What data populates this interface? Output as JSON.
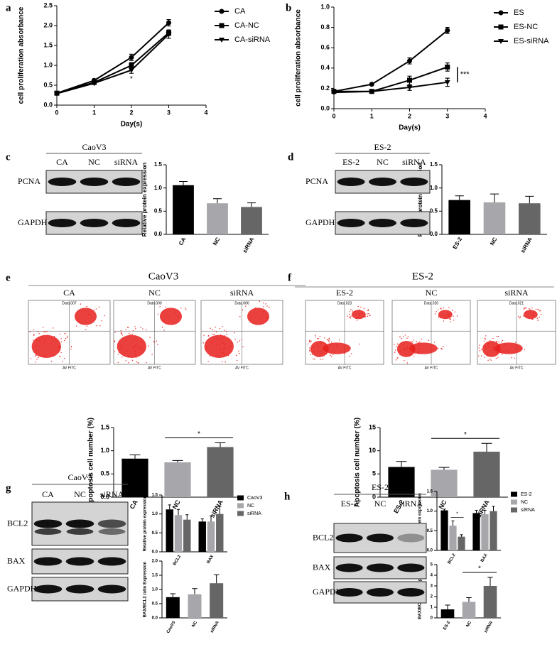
{
  "chart_data": [
    {
      "type": "line",
      "panel": "a",
      "y_label": "cell proliferation absorbance",
      "x_label": "Day(s)",
      "x": [
        0,
        1,
        2,
        3
      ],
      "xlim": [
        0,
        4
      ],
      "xticks": [
        0,
        1,
        2,
        3,
        4
      ],
      "ylim": [
        0,
        2.5
      ],
      "yticks": [
        {
          "value": 0,
          "label": "0.0"
        },
        0.5,
        {
          "value": 1,
          "label": "1.0"
        },
        1.5,
        {
          "value": 2,
          "label": "2.0"
        },
        2.5
      ],
      "legend": "upper right",
      "annotation": "*",
      "series": [
        {
          "name": "CA",
          "color": "#000000",
          "marker": "circle",
          "values": [
            0.3,
            0.62,
            1.2,
            2.07
          ],
          "errors": [
            0.03,
            0.04,
            0.08,
            0.08
          ]
        },
        {
          "name": "CA-NC",
          "color": "#000000",
          "marker": "square",
          "values": [
            0.3,
            0.57,
            1.0,
            1.82
          ],
          "errors": [
            0.03,
            0.03,
            0.07,
            0.07
          ]
        },
        {
          "name": "CA-siRNA",
          "color": "#000000",
          "marker": "triangle",
          "values": [
            0.29,
            0.55,
            0.88,
            1.78
          ],
          "errors": [
            0.03,
            0.03,
            0.08,
            0.1
          ]
        }
      ]
    },
    {
      "type": "line",
      "panel": "b",
      "y_label": "cell proliferation absorbance",
      "x_label": "Day(s)",
      "x": [
        0,
        1,
        2,
        3
      ],
      "xlim": [
        0,
        4
      ],
      "xticks": [
        0,
        1,
        2,
        3,
        4
      ],
      "ylim": [
        0,
        1
      ],
      "yticks": [
        {
          "value": 0,
          "label": "0.0"
        },
        0.2,
        0.4,
        0.6,
        0.8,
        {
          "value": 1,
          "label": "1.0"
        }
      ],
      "legend": "upper right",
      "annotation": "***",
      "series": [
        {
          "name": "ES",
          "color": "#000000",
          "marker": "circle",
          "values": [
            0.17,
            0.24,
            0.47,
            0.77
          ],
          "errors": [
            0.01,
            0.01,
            0.03,
            0.03
          ]
        },
        {
          "name": "ES-NC",
          "color": "#000000",
          "marker": "square",
          "values": [
            0.17,
            0.17,
            0.28,
            0.41
          ],
          "errors": [
            0.01,
            0.01,
            0.04,
            0.04
          ]
        },
        {
          "name": "ES-siRNA",
          "color": "#000000",
          "marker": "triangle",
          "values": [
            0.16,
            0.17,
            0.21,
            0.26
          ],
          "errors": [
            0.01,
            0.01,
            0.03,
            0.04
          ]
        }
      ]
    },
    {
      "type": "bar",
      "y_label": "Relative protein expression",
      "categories": [
        "CA",
        "NC",
        "siRNA"
      ],
      "values": [
        1.06,
        0.67,
        0.59
      ],
      "errors": [
        0.08,
        0.1,
        0.09
      ],
      "colors": [
        "#000000",
        "#a6a6ab",
        "#666666"
      ],
      "ylim": [
        0,
        1.5
      ],
      "yticks": [
        {
          "value": 0,
          "label": "0.0"
        },
        0.5,
        {
          "value": 1,
          "label": "1.0"
        },
        1.5
      ]
    },
    {
      "type": "bar",
      "y_label": "Relative protein expression",
      "categories": [
        "ES-2",
        "NC",
        "siRNA"
      ],
      "values": [
        0.74,
        0.69,
        0.67
      ],
      "errors": [
        0.09,
        0.18,
        0.15
      ],
      "colors": [
        "#000000",
        "#a6a6ab",
        "#666666"
      ],
      "ylim": [
        0,
        1.5
      ],
      "yticks": [
        {
          "value": 0,
          "label": "0.0"
        },
        0.5,
        {
          "value": 1,
          "label": "1.0"
        },
        1.5
      ]
    },
    {
      "type": "bar",
      "y_label": "Apoptosis cell number (%)",
      "categories": [
        "CA",
        "NC",
        "siRNA"
      ],
      "values": [
        0.83,
        0.75,
        1.08
      ],
      "errors": [
        0.08,
        0.04,
        0.09
      ],
      "colors": [
        "#000000",
        "#a6a6ab",
        "#666666"
      ],
      "ylim": [
        0,
        1.5
      ],
      "yticks": [
        {
          "value": 0,
          "label": "0.0"
        },
        0.5,
        {
          "value": 1,
          "label": "1.0"
        },
        1.5
      ],
      "annotation": "*"
    },
    {
      "type": "bar",
      "y_label": "Apoptosis cell number (%)",
      "categories": [
        "ES-2",
        "NC",
        "siRNA"
      ],
      "values": [
        6.5,
        5.9,
        9.8
      ],
      "errors": [
        1.2,
        0.5,
        1.8
      ],
      "colors": [
        "#000000",
        "#a6a6ab",
        "#666666"
      ],
      "ylim": [
        0,
        15
      ],
      "yticks": [
        0,
        5,
        10,
        15
      ],
      "annotation": "*"
    },
    {
      "type": "grouped_bar",
      "y_label": "Relative protein expression",
      "categories": [
        "BCL2",
        "BAX"
      ],
      "legend": "right",
      "ylim": [
        0,
        1.5
      ],
      "yticks": [
        {
          "value": 0,
          "label": "0.0"
        },
        0.5,
        {
          "value": 1,
          "label": "1.0"
        },
        1.5
      ],
      "series": [
        {
          "name": "CaoV3",
          "color": "#000000",
          "values": [
            1.12,
            0.8
          ],
          "errors": [
            0.12,
            0.07
          ]
        },
        {
          "name": "NC",
          "color": "#a6a6ab",
          "values": [
            0.97,
            0.8
          ],
          "errors": [
            0.15,
            0.15
          ]
        },
        {
          "name": "siRNA",
          "color": "#666666",
          "values": [
            0.85,
            1.0
          ],
          "errors": [
            0.13,
            0.2
          ]
        }
      ]
    },
    {
      "type": "bar",
      "y_label": "BAX/BCL2 ratio Expression",
      "categories": [
        "CaoV3",
        "NC",
        "siRNA"
      ],
      "values": [
        0.73,
        0.83,
        1.22
      ],
      "errors": [
        0.12,
        0.2,
        0.3
      ],
      "colors": [
        "#000000",
        "#a6a6ab",
        "#666666"
      ],
      "ylim": [
        0,
        2
      ],
      "yticks": [
        {
          "value": 0,
          "label": "0.0"
        },
        0.5,
        {
          "value": 1,
          "label": "1.0"
        },
        1.5,
        {
          "value": 2,
          "label": "2.0"
        }
      ]
    },
    {
      "type": "grouped_bar",
      "y_label": "Relative protein expression",
      "categories": [
        "BCL2",
        "BAX"
      ],
      "legend": "right",
      "annotation": "*",
      "ylim": [
        0,
        1.5
      ],
      "yticks": [
        {
          "value": 0,
          "label": "0.0"
        },
        0.5,
        {
          "value": 1,
          "label": "1.0"
        },
        1.5
      ],
      "series": [
        {
          "name": "ES-2",
          "color": "#000000",
          "values": [
            1.02,
            0.95
          ],
          "errors": [
            0.03,
            0.07
          ]
        },
        {
          "name": "NC",
          "color": "#a6a6ab",
          "values": [
            0.63,
            0.92
          ],
          "errors": [
            0.12,
            0.1
          ]
        },
        {
          "name": "siRNA",
          "color": "#666666",
          "values": [
            0.35,
            1.0
          ],
          "errors": [
            0.05,
            0.12
          ]
        }
      ]
    },
    {
      "type": "bar",
      "y_label": "BAX/BCL2 ratio Expression",
      "categories": [
        "ES-2",
        "NC",
        "siRNA"
      ],
      "values": [
        0.8,
        1.5,
        3.0
      ],
      "errors": [
        0.4,
        0.4,
        0.8
      ],
      "colors": [
        "#000000",
        "#a6a6ab",
        "#666666"
      ],
      "ylim": [
        0,
        5
      ],
      "yticks": [
        0,
        1,
        2,
        3,
        4,
        5
      ],
      "annotation": "*"
    }
  ],
  "blots": [
    {
      "panel": "c",
      "title": "CaoV3",
      "lanes": [
        "CA",
        "NC",
        "siRNA"
      ],
      "rows": [
        "PCNA",
        "GAPDH"
      ]
    },
    {
      "panel": "d",
      "title": "ES-2",
      "lanes": [
        "ES-2",
        "NC",
        "siRNA"
      ],
      "rows": [
        "PCNA",
        "GAPDH"
      ]
    },
    {
      "panel": "g",
      "title": "CaoV3",
      "lanes": [
        "CA",
        "NC",
        "siRNA"
      ],
      "rows": [
        "BCL2",
        "BAX",
        "GAPDH"
      ]
    },
    {
      "panel": "h",
      "title": "ES-2",
      "lanes": [
        "ES-2",
        "NC",
        "siRNA"
      ],
      "rows": [
        "BCL2",
        "BAX",
        "GAPDH"
      ]
    }
  ],
  "flow_panels": [
    {
      "panel": "e",
      "title": "CaoV3",
      "plots": [
        {
          "label": "CA",
          "file": "Data.007",
          "x_label": "AV FITC"
        },
        {
          "label": "NC",
          "file": "Data.000",
          "x_label": "AV FITC"
        },
        {
          "label": "siRNA",
          "file": "Data.006",
          "x_label": "AV FITC"
        }
      ]
    },
    {
      "panel": "f",
      "title": "ES-2",
      "plots": [
        {
          "label": "ES-2",
          "file": "Data.023",
          "x_label": "AV FITC"
        },
        {
          "label": "NC",
          "file": "Data.020",
          "x_label": "AV FITC"
        },
        {
          "label": "siRNA",
          "file": "Data.021",
          "x_label": "AV FITC"
        }
      ]
    }
  ]
}
